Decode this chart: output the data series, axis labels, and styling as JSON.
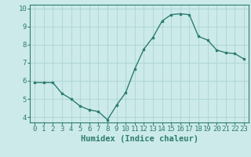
{
  "x": [
    0,
    1,
    2,
    3,
    4,
    5,
    6,
    7,
    8,
    9,
    10,
    11,
    12,
    13,
    14,
    15,
    16,
    17,
    18,
    19,
    20,
    21,
    22,
    23
  ],
  "y": [
    5.9,
    5.9,
    5.9,
    5.3,
    5.0,
    4.6,
    4.4,
    4.3,
    3.85,
    4.65,
    5.35,
    6.65,
    7.75,
    8.4,
    9.3,
    9.65,
    9.7,
    9.65,
    8.45,
    8.25,
    7.7,
    7.55,
    7.5,
    7.2
  ],
  "line_color": "#2d7d6f",
  "marker": "s",
  "marker_size": 1.8,
  "background_color": "#cdeaea",
  "grid_color": "#b0d8d8",
  "xlabel": "Humidex (Indice chaleur)",
  "xlim": [
    -0.5,
    23.5
  ],
  "ylim": [
    3.7,
    10.2
  ],
  "yticks": [
    4,
    5,
    6,
    7,
    8,
    9,
    10
  ],
  "xticks": [
    0,
    1,
    2,
    3,
    4,
    5,
    6,
    7,
    8,
    9,
    10,
    11,
    12,
    13,
    14,
    15,
    16,
    17,
    18,
    19,
    20,
    21,
    22,
    23
  ],
  "tick_color": "#2d7d6f",
  "label_color": "#2d7d6f",
  "xlabel_fontsize": 7.5,
  "tick_fontsize": 6.5,
  "linewidth": 1.0
}
